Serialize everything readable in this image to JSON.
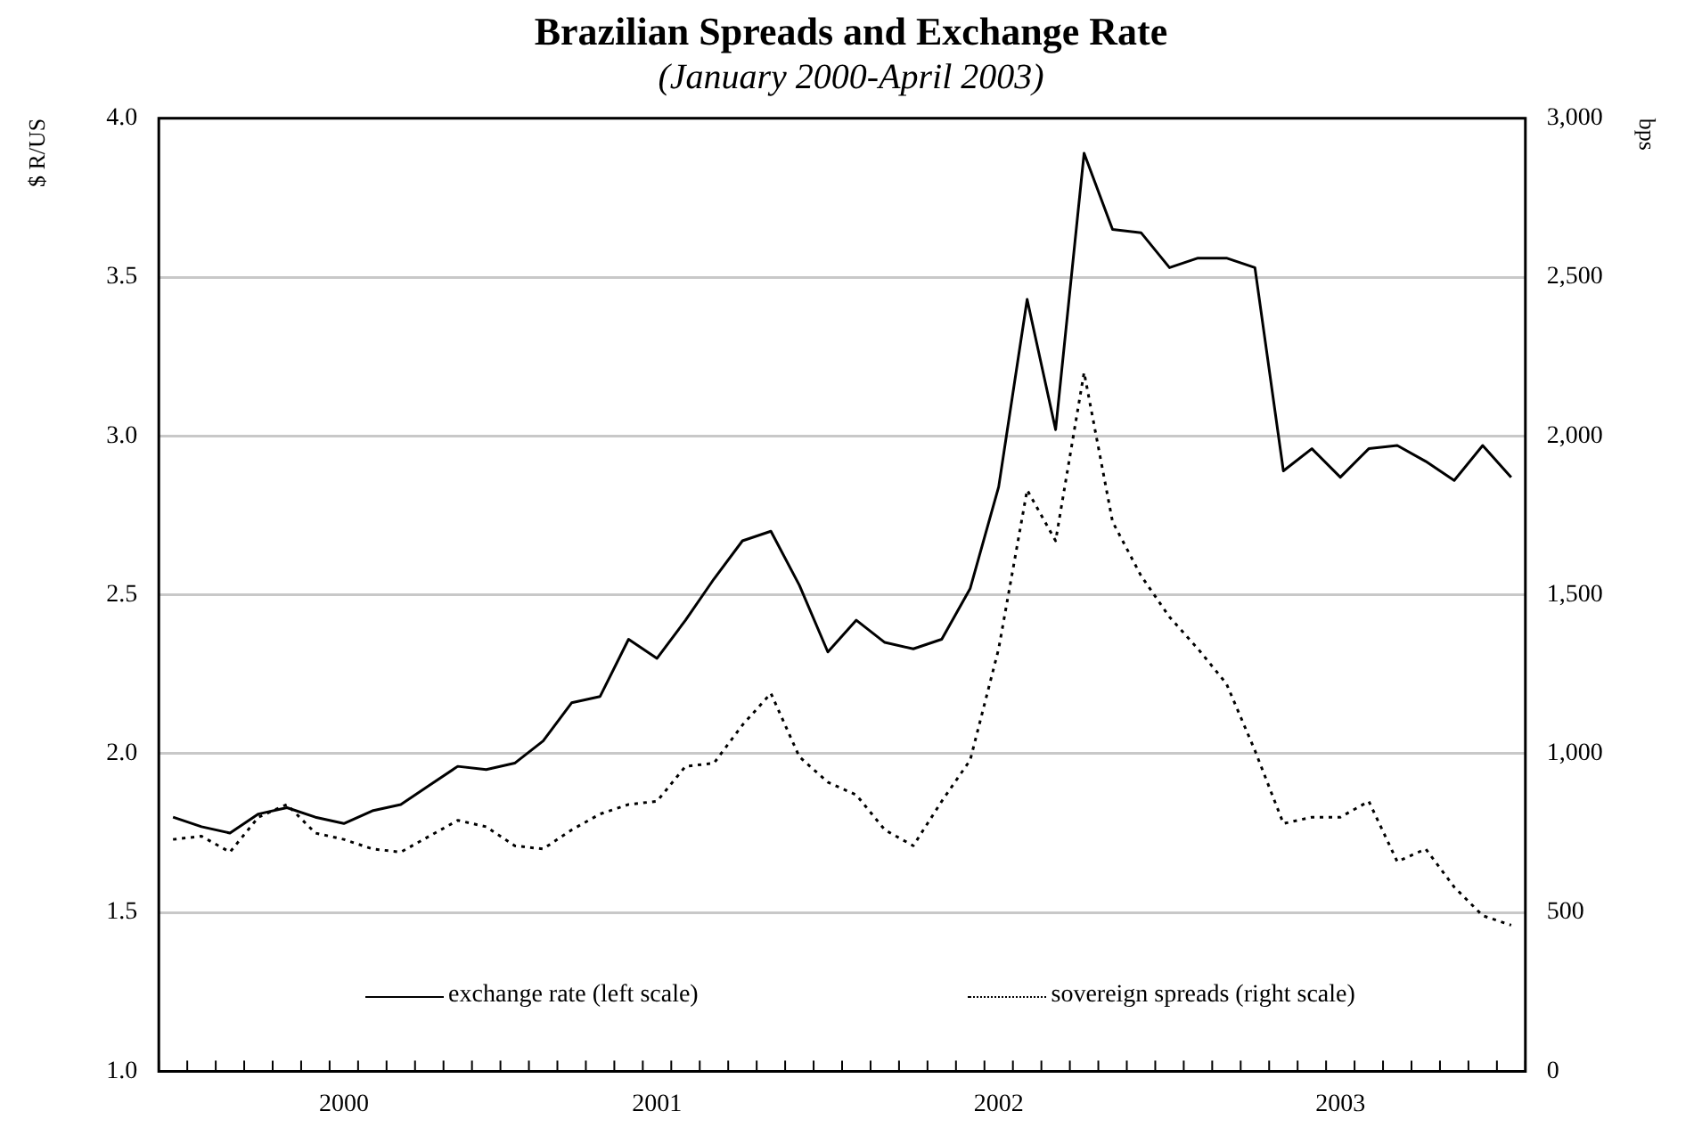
{
  "chart_data": {
    "type": "line",
    "title": "Brazilian Spreads and Exchange Rate",
    "subtitle": "(January 2000-April 2003)",
    "ylabel": "$ R/US",
    "y2label": "bps",
    "categories": [
      null,
      null,
      null,
      null,
      null,
      null,
      "2000",
      null,
      null,
      null,
      null,
      null,
      null,
      null,
      null,
      null,
      null,
      "2001",
      null,
      null,
      null,
      null,
      null,
      null,
      null,
      null,
      null,
      null,
      null,
      "2002",
      null,
      null,
      null,
      null,
      null,
      null,
      null,
      null,
      null,
      null,
      null,
      "2003",
      null,
      null,
      null,
      null,
      null,
      null
    ],
    "series": [
      {
        "name": "exchange rate (left scale)",
        "color": "#000000",
        "line_style": "solid",
        "values": [
          1.8,
          1.77,
          1.75,
          1.81,
          1.83,
          1.8,
          1.78,
          1.82,
          1.84,
          1.9,
          1.96,
          1.95,
          1.97,
          2.04,
          2.16,
          2.18,
          2.36,
          2.3,
          2.42,
          2.55,
          2.67,
          2.7,
          2.53,
          2.32,
          2.42,
          2.35,
          2.33,
          2.36,
          2.52,
          2.84,
          3.43,
          3.02,
          3.89,
          3.65,
          3.64,
          3.53,
          3.56,
          3.56,
          3.53,
          2.89,
          2.96,
          2.87,
          2.96,
          2.97,
          2.92,
          2.86,
          2.97,
          2.87
        ]
      },
      {
        "name": "sovereign spreads (right scale)",
        "color": "#000000",
        "line_style": "dotted",
        "axis": "y2",
        "values": [
          730,
          740,
          690,
          800,
          840,
          750,
          730,
          700,
          690,
          740,
          790,
          770,
          710,
          700,
          760,
          810,
          840,
          850,
          960,
          970,
          1090,
          1190,
          990,
          910,
          870,
          760,
          710,
          850,
          980,
          1330,
          1830,
          1670,
          2200,
          1730,
          1560,
          1430,
          1330,
          1220,
          1010,
          780,
          800,
          800,
          850,
          660,
          700,
          580,
          490,
          460
        ]
      }
    ],
    "ylim": [
      1,
      4
    ],
    "yticks": [
      {
        "value": 1,
        "label": "1.0"
      },
      {
        "value": 1.5,
        "label": "1.5"
      },
      {
        "value": 2,
        "label": "2.0"
      },
      {
        "value": 2.5,
        "label": "2.5"
      },
      {
        "value": 3,
        "label": "3.0"
      },
      {
        "value": 3.5,
        "label": "3.5"
      },
      {
        "value": 4,
        "label": "4.0"
      }
    ],
    "y2lim": [
      0,
      3000
    ],
    "y2ticks": [
      0,
      500,
      {
        "value": 1000,
        "label": "1,000"
      },
      {
        "value": 1500,
        "label": "1,500"
      },
      {
        "value": 2000,
        "label": "2,000"
      },
      {
        "value": 2500,
        "label": "2,500"
      },
      {
        "value": 3000,
        "label": "3,000"
      }
    ],
    "grid": "y",
    "legend": "bottom",
    "marker": "none"
  }
}
